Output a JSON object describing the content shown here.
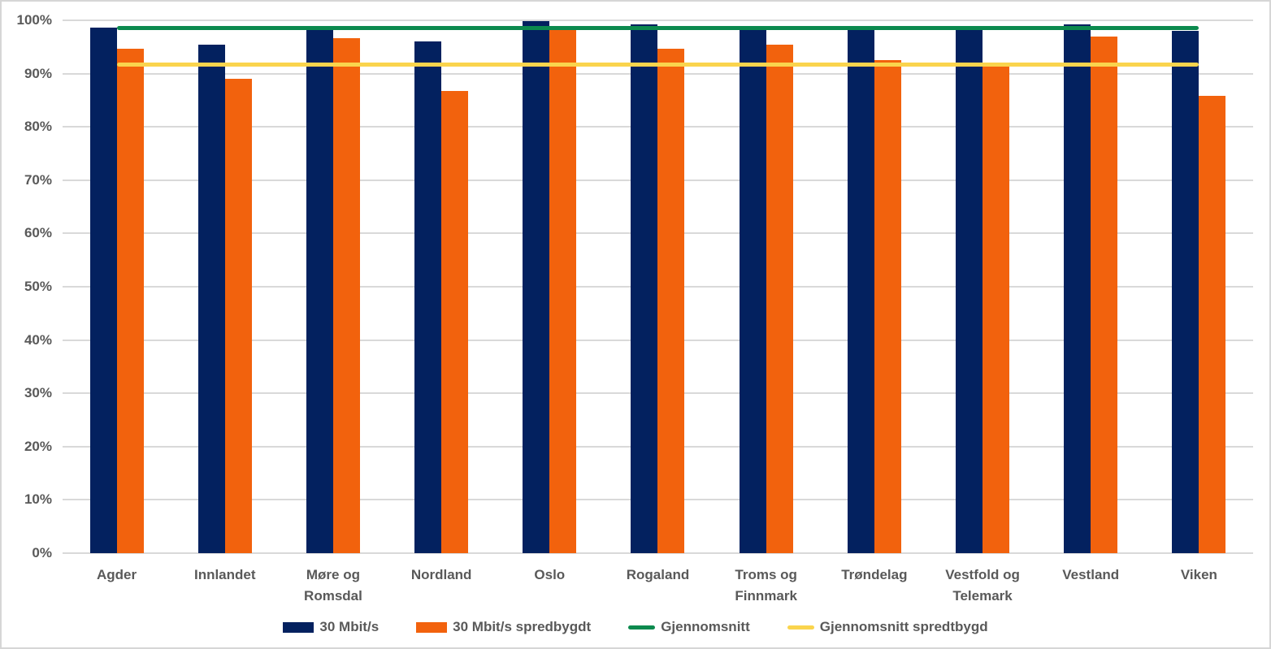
{
  "chart_data": {
    "type": "bar",
    "title": "",
    "xlabel": "",
    "ylabel": "",
    "ylim": [
      0,
      100
    ],
    "grid": true,
    "legend_position": "bottom",
    "y_tick_labels": [
      "0%",
      "10%",
      "20%",
      "30%",
      "40%",
      "50%",
      "60%",
      "70%",
      "80%",
      "90%",
      "100%"
    ],
    "y_tick_values": [
      0,
      10,
      20,
      30,
      40,
      50,
      60,
      70,
      80,
      90,
      100
    ],
    "categories": [
      "Agder",
      "Innlandet",
      "Møre og Romsdal",
      "Nordland",
      "Oslo",
      "Rogaland",
      "Troms og Finnmark",
      "Trøndelag",
      "Vestfold og Telemark",
      "Vestland",
      "Viken"
    ],
    "category_label_lines": [
      [
        "Agder"
      ],
      [
        "Innlandet"
      ],
      [
        "Møre og",
        "Romsdal"
      ],
      [
        "Nordland"
      ],
      [
        "Oslo"
      ],
      [
        "Rogaland"
      ],
      [
        "Troms og",
        "Finnmark"
      ],
      [
        "Trøndelag"
      ],
      [
        "Vestfold og",
        "Telemark"
      ],
      [
        "Vestland"
      ],
      [
        "Viken"
      ]
    ],
    "series": [
      {
        "name": "30 Mbit/s",
        "color": "#03215F",
        "values": [
          98.7,
          95.4,
          99.0,
          96.1,
          99.8,
          99.2,
          98.2,
          98.2,
          98.2,
          99.2,
          98.0
        ]
      },
      {
        "name": "30 Mbit/s spredbygdt",
        "color": "#F2620D",
        "values": [
          94.6,
          89.0,
          96.6,
          86.8,
          98.3,
          94.7,
          95.5,
          92.5,
          92.0,
          97.0,
          85.8
        ]
      }
    ],
    "lines": [
      {
        "name": "Gjennomsnitt",
        "color": "#0C8A4E",
        "value": 98.5
      },
      {
        "name": "Gjennomsnitt spredtbygd",
        "color": "#FAD44D",
        "value": 91.7
      }
    ]
  },
  "colors": {
    "gridline": "#D9D9D9",
    "axis_text": "#595959",
    "frame_border": "#D6D6D6",
    "background": "#FFFFFF"
  }
}
